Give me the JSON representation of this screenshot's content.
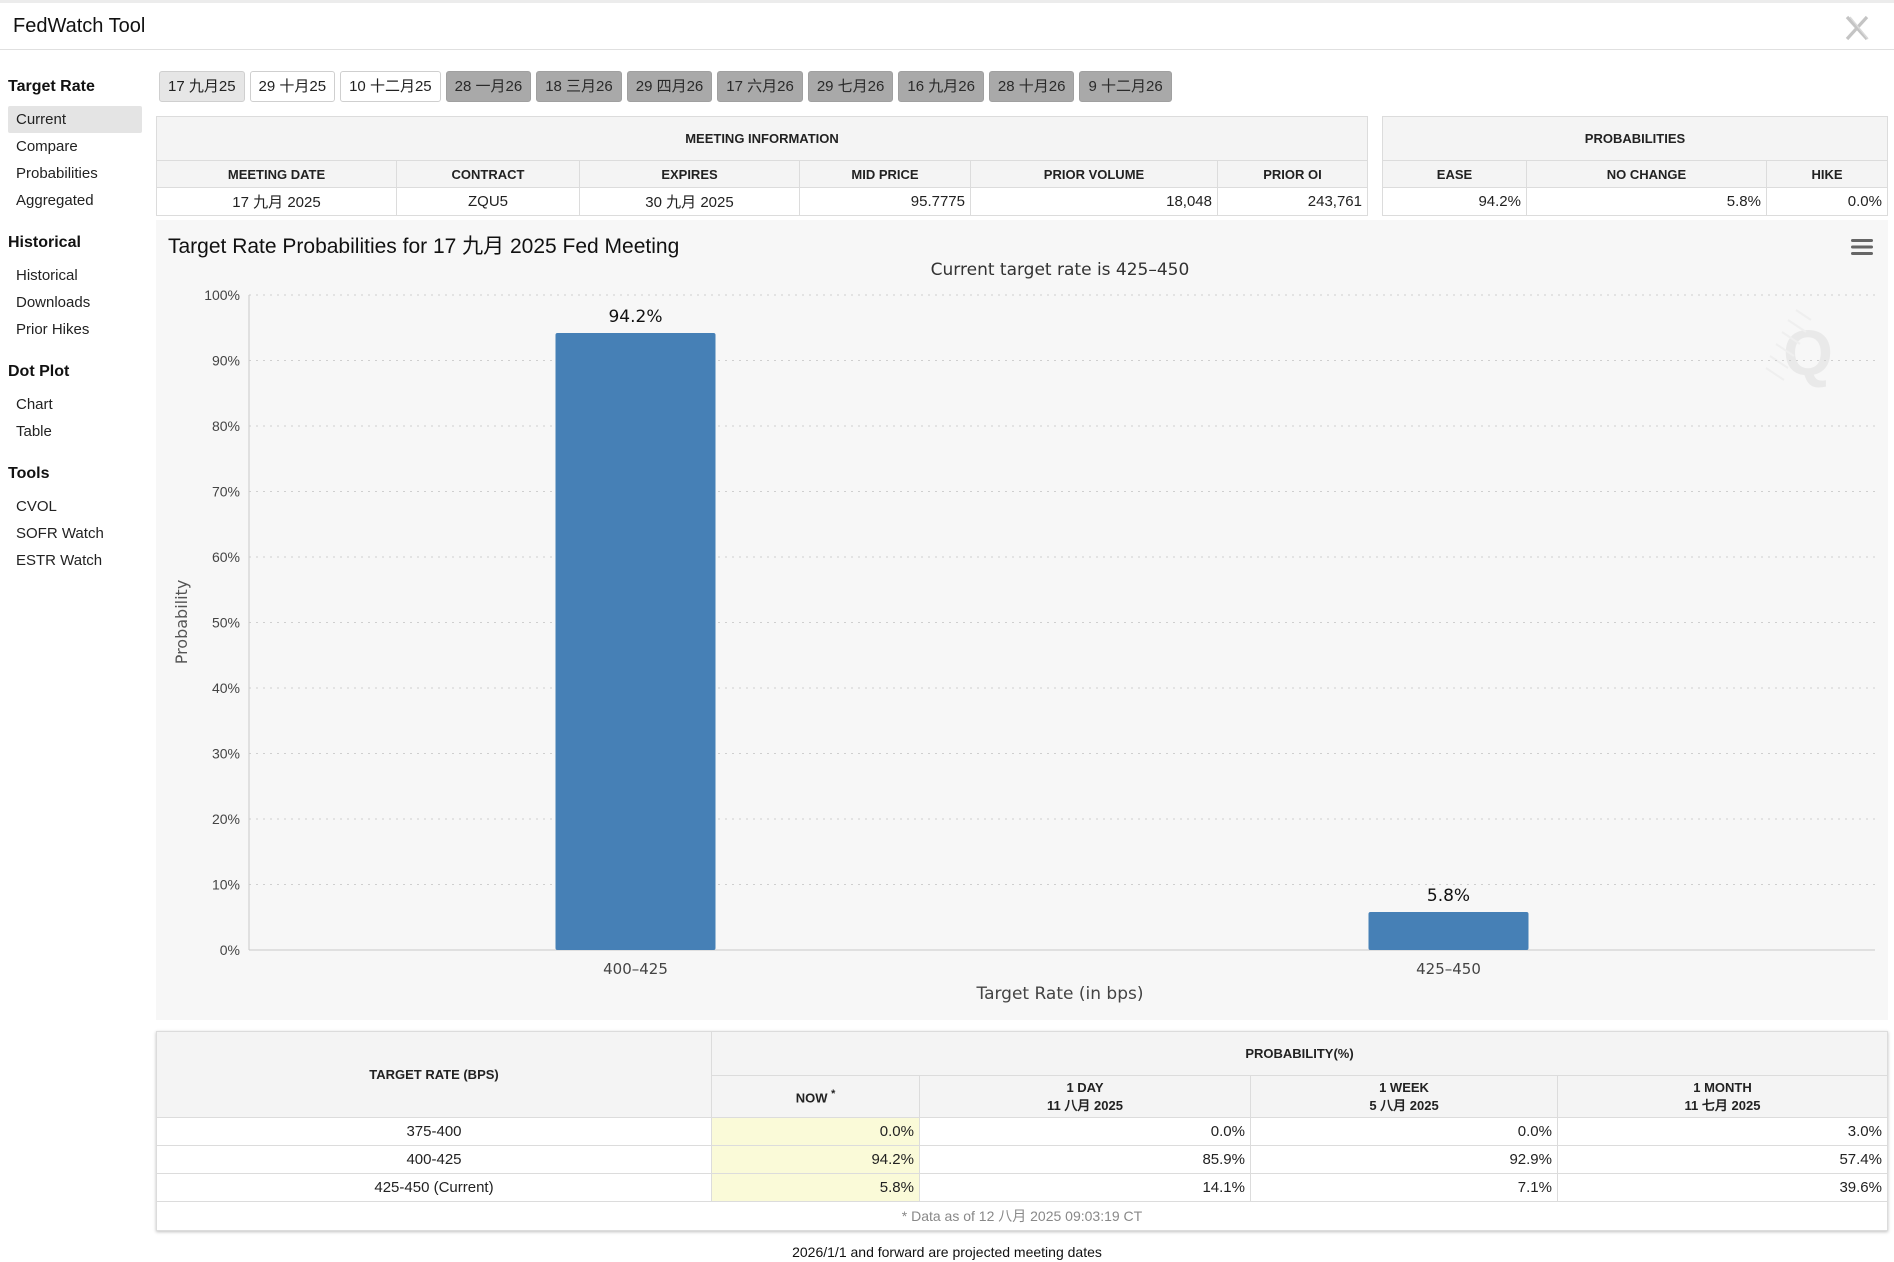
{
  "app": {
    "title": "FedWatch Tool"
  },
  "sidebar": {
    "groups": [
      {
        "heading": "Target Rate",
        "items": [
          "Current",
          "Compare",
          "Probabilities",
          "Aggregated"
        ]
      },
      {
        "heading": "Historical",
        "items": [
          "Historical",
          "Downloads",
          "Prior Hikes"
        ]
      },
      {
        "heading": "Dot Plot",
        "items": [
          "Chart",
          "Table"
        ]
      },
      {
        "heading": "Tools",
        "items": [
          "CVOL",
          "SOFR Watch",
          "ESTR Watch"
        ]
      }
    ],
    "active_item": "Current"
  },
  "meeting_tabs": [
    "17 九月25",
    "29 十月25",
    "10 十二月25",
    "28 一月26",
    "18 三月26",
    "29 四月26",
    "17 六月26",
    "29 七月26",
    "16 九月26",
    "28 十月26",
    "9 十二月26"
  ],
  "meeting_info": {
    "heading": "MEETING INFORMATION",
    "columns": [
      "MEETING DATE",
      "CONTRACT",
      "EXPIRES",
      "MID PRICE",
      "PRIOR VOLUME",
      "PRIOR OI"
    ],
    "row": [
      "17 九月 2025",
      "ZQU5",
      "30 九月 2025",
      "95.7775",
      "18,048",
      "243,761"
    ]
  },
  "probabilities": {
    "heading": "PROBABILITIES",
    "columns": [
      "EASE",
      "NO CHANGE",
      "HIKE"
    ],
    "row": [
      "94.2%",
      "5.8%",
      "0.0%"
    ]
  },
  "chart_title": "Target Rate Probabilities for 17 九月 2025 Fed Meeting",
  "chart_data": {
    "type": "bar",
    "title": "Current target rate is 425–450",
    "xlabel": "Target Rate (in bps)",
    "ylabel": "Probability",
    "categories": [
      "400–425",
      "425–450"
    ],
    "values": [
      94.2,
      5.8
    ],
    "value_labels": [
      "94.2%",
      "5.8%"
    ],
    "ylim": [
      0,
      100
    ],
    "yticks": [
      "0%",
      "10%",
      "20%",
      "30%",
      "40%",
      "50%",
      "60%",
      "70%",
      "80%",
      "90%",
      "100%"
    ],
    "grid": true,
    "bar_color": "#4680b6"
  },
  "prob_table": {
    "rate_header": "TARGET RATE (BPS)",
    "group_header": "PROBABILITY(%)",
    "now_header": "NOW",
    "now_mark": "*",
    "periods": [
      {
        "label": "1 DAY",
        "date": "11 八月 2025"
      },
      {
        "label": "1 WEEK",
        "date": "5 八月 2025"
      },
      {
        "label": "1 MONTH",
        "date": "11 七月 2025"
      }
    ],
    "rows": [
      {
        "rate": "375-400",
        "now": "0.0%",
        "day": "0.0%",
        "week": "0.0%",
        "month": "3.0%"
      },
      {
        "rate": "400-425",
        "now": "94.2%",
        "day": "85.9%",
        "week": "92.9%",
        "month": "57.4%"
      },
      {
        "rate": "425-450 (Current)",
        "now": "5.8%",
        "day": "14.1%",
        "week": "7.1%",
        "month": "39.6%"
      }
    ],
    "footnote": "* Data as of 12 八月 2025 09:03:19 CT"
  },
  "projected_note": "2026/1/1 and forward are projected meeting dates"
}
